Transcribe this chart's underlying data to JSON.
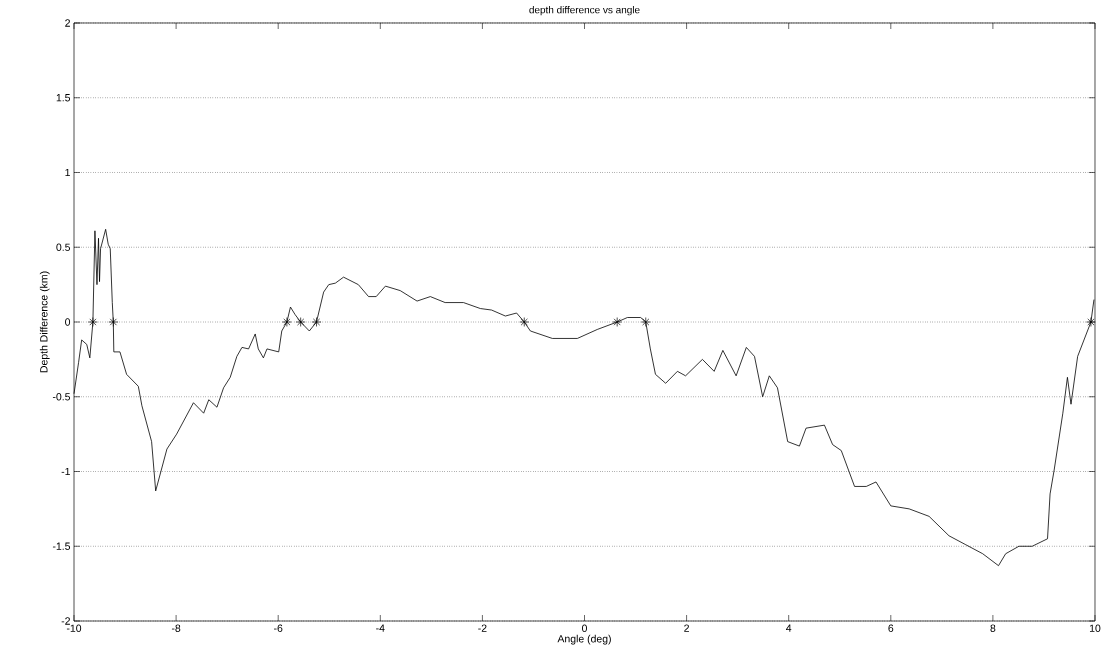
{
  "chart_data": {
    "type": "line",
    "title": "depth difference vs angle",
    "xlabel": "Angle (deg)",
    "ylabel": "Depth Difference (km)",
    "xlim": [
      -10,
      10
    ],
    "ylim": [
      -2,
      2
    ],
    "xticks": [
      -10,
      -8,
      -6,
      -4,
      -2,
      0,
      2,
      4,
      6,
      8,
      10
    ],
    "yticks": [
      -2,
      -1.5,
      -1,
      -0.5,
      0,
      0.5,
      1,
      1.5,
      2
    ],
    "grid": "y",
    "series": [
      {
        "type": "line",
        "color": "#000000",
        "marker": "none",
        "x": [
          -10,
          -9.91,
          -9.85,
          -9.75,
          -9.69,
          -9.63,
          -9.59,
          -9.55,
          -9.52,
          -9.5,
          -9.48,
          -9.38,
          -9.33,
          -9.29,
          -9.25,
          -9.23,
          -9.22,
          -9.1,
          -8.97,
          -8.74,
          -8.67,
          -8.48,
          -8.4,
          -8.18,
          -7.99,
          -7.66,
          -7.46,
          -7.36,
          -7.2,
          -7.07,
          -6.94,
          -6.81,
          -6.71,
          -6.58,
          -6.45,
          -6.39,
          -6.29,
          -6.22,
          -5.99,
          -5.93,
          -5.83,
          -5.76,
          -5.67,
          -5.56,
          -5.39,
          -5.25,
          -5.11,
          -5.01,
          -4.88,
          -4.72,
          -4.43,
          -4.23,
          -4.08,
          -3.9,
          -3.61,
          -3.28,
          -3.02,
          -2.73,
          -2.37,
          -2.04,
          -1.82,
          -1.55,
          -1.33,
          -1.18,
          -1.06,
          -0.63,
          -0.14,
          0.25,
          0.64,
          0.84,
          1.1,
          1.2,
          1.29,
          1.39,
          1.59,
          1.82,
          1.98,
          2.31,
          2.54,
          2.71,
          2.97,
          3.17,
          3.33,
          3.49,
          3.62,
          3.78,
          3.98,
          4.21,
          4.34,
          4.7,
          4.86,
          5.03,
          5.29,
          5.52,
          5.71,
          6.0,
          6.36,
          6.75,
          7.14,
          7.47,
          7.8,
          8.11,
          8.25,
          8.51,
          8.77,
          9.07,
          9.12,
          9.2,
          9.37,
          9.46,
          9.53,
          9.66,
          9.92,
          9.98
        ],
        "values": [
          -0.48,
          -0.27,
          -0.12,
          -0.15,
          -0.24,
          0,
          0.61,
          0.25,
          0.56,
          0.27,
          0.49,
          0.62,
          0.52,
          0.49,
          0.13,
          0,
          -0.2,
          -0.2,
          -0.35,
          -0.43,
          -0.56,
          -0.8,
          -1.13,
          -0.85,
          -0.75,
          -0.54,
          -0.61,
          -0.52,
          -0.57,
          -0.44,
          -0.37,
          -0.23,
          -0.17,
          -0.18,
          -0.08,
          -0.18,
          -0.24,
          -0.18,
          -0.2,
          -0.06,
          0,
          0.1,
          0.05,
          0,
          -0.06,
          0,
          0.2,
          0.25,
          0.26,
          0.3,
          0.25,
          0.17,
          0.17,
          0.24,
          0.21,
          0.14,
          0.17,
          0.13,
          0.13,
          0.09,
          0.08,
          0.04,
          0.06,
          0,
          -0.06,
          -0.11,
          -0.11,
          -0.05,
          0,
          0.03,
          0.03,
          0,
          -0.18,
          -0.35,
          -0.41,
          -0.33,
          -0.36,
          -0.25,
          -0.33,
          -0.19,
          -0.36,
          -0.17,
          -0.23,
          -0.5,
          -0.36,
          -0.44,
          -0.8,
          -0.83,
          -0.71,
          -0.69,
          -0.82,
          -0.86,
          -1.1,
          -1.1,
          -1.07,
          -1.23,
          -1.25,
          -1.3,
          -1.43,
          -1.49,
          -1.55,
          -1.63,
          -1.55,
          -1.5,
          -1.5,
          -1.45,
          -1.15,
          -0.99,
          -0.61,
          -0.37,
          -0.55,
          -0.23,
          0,
          0.15
        ]
      },
      {
        "type": "scatter",
        "color": "#000000",
        "marker": "cross",
        "x": [
          -9.63,
          -9.23,
          -5.83,
          -5.56,
          -5.25,
          -1.18,
          0.64,
          1.2,
          9.92
        ],
        "values": [
          0,
          0,
          0,
          0,
          0,
          0,
          0,
          0,
          0
        ]
      }
    ]
  }
}
